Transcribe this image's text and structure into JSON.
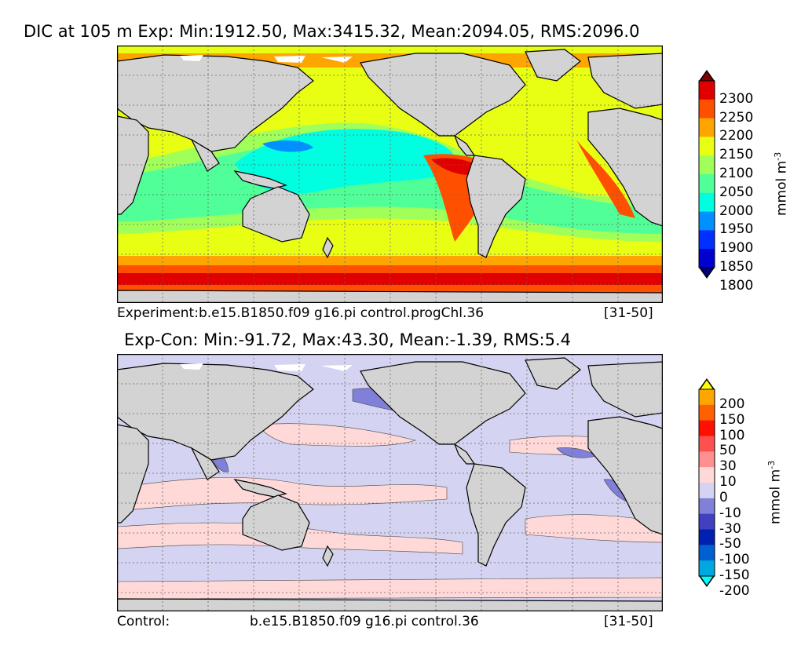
{
  "top_panel": {
    "title": "DIC at 105 m Exp: Min:1912.50, Max:3415.32, Mean:2094.05, RMS:2096.0",
    "caption_left": "Experiment:b.e15.B1850.f09 g16.pi control.progChl.36",
    "caption_right": "[31-50]",
    "colorbar": {
      "unit": "mmol m",
      "unit_exponent": "-3",
      "labels": [
        "2300",
        "2250",
        "2200",
        "2150",
        "2100",
        "2050",
        "2000",
        "1950",
        "1900",
        "1850",
        "1800"
      ],
      "colors": [
        "#800000",
        "#e00000",
        "#ff5000",
        "#ffa500",
        "#e8ff14",
        "#a0ff58",
        "#50ff98",
        "#00ffe0",
        "#0090ff",
        "#0030ff",
        "#0000d0",
        "#000080"
      ]
    }
  },
  "bottom_panel": {
    "title": "Exp-Con: Min:-91.72, Max:43.30, Mean:-1.39, RMS:5.4",
    "caption_left": "Control:",
    "caption_mid": "b.e15.B1850.f09 g16.pi control.36",
    "caption_right": "[31-50]",
    "colorbar": {
      "unit": "mmol m",
      "unit_exponent": "-3",
      "labels": [
        "200",
        "150",
        "100",
        "50",
        "30",
        "10",
        "0",
        "-10",
        "-30",
        "-50",
        "-100",
        "-150",
        "-200"
      ],
      "colors": [
        "#ffff00",
        "#ffa500",
        "#ff6000",
        "#ff1000",
        "#ff5050",
        "#ff9090",
        "#ffd8d8",
        "#d4d4f2",
        "#8080d8",
        "#4040c0",
        "#0020b0",
        "#0060d0",
        "#00a8e0",
        "#00ffff"
      ]
    }
  },
  "colors": {
    "land": "#d3d3d3",
    "frame": "#000000",
    "gridline": "#666666"
  }
}
